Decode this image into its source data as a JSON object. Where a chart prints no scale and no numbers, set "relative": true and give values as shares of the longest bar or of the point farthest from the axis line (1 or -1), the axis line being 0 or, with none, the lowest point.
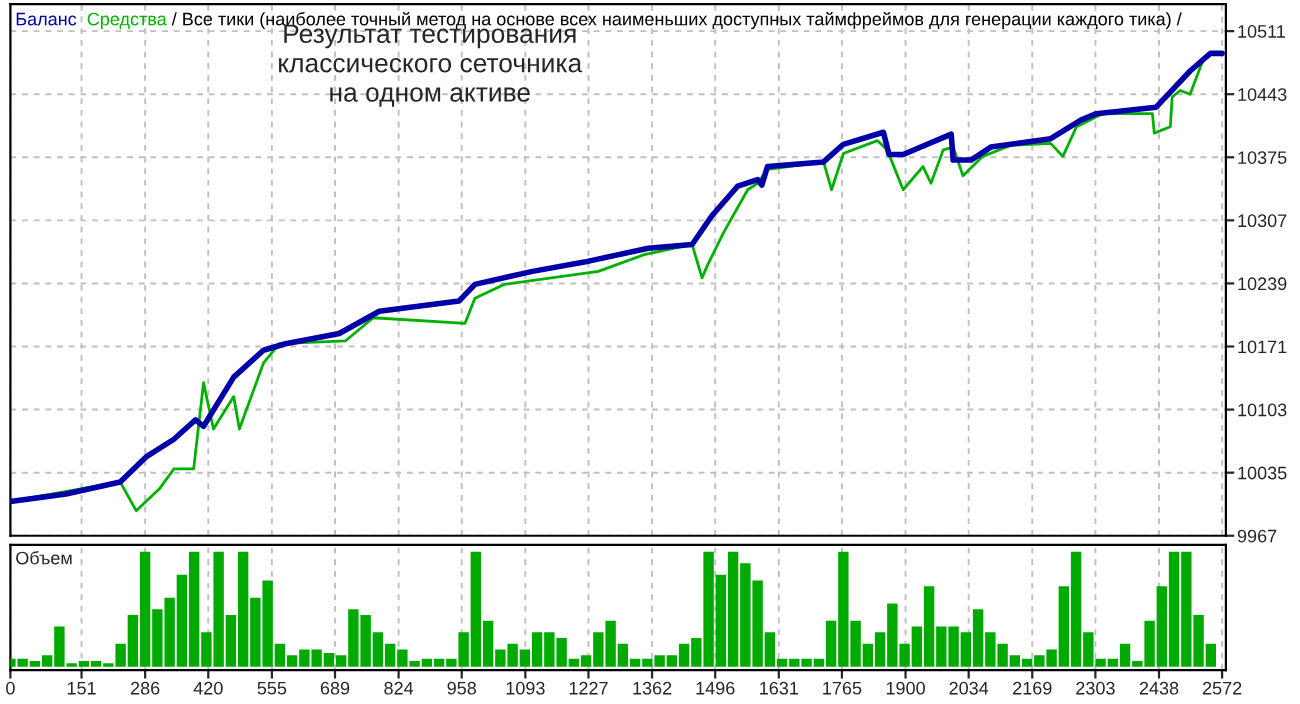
{
  "chart_data": [
    {
      "type": "line",
      "subtitle": "/ Все тики (наиболее точный метод на основе всех наименьших доступных таймфреймов для генерации каждого тика) /",
      "annotations": [
        "Результат тестирования\nклассического сеточника\nна одном активе"
      ],
      "series": [
        {
          "name": "Баланс",
          "color": "#0000a8",
          "x": [
            0,
            118,
            233,
            288,
            347,
            393,
            410,
            474,
            537,
            584,
            698,
            783,
            952,
            986,
            1108,
            1218,
            1354,
            1447,
            1489,
            1544,
            1586,
            1595,
            1607,
            1726,
            1768,
            1853,
            1865,
            1895,
            1997,
            2001,
            2039,
            2081,
            2208,
            2272,
            2305,
            2432,
            2504,
            2547,
            2572
          ],
          "values": [
            10004,
            10012,
            10025,
            10052,
            10071,
            10092,
            10085,
            10138,
            10167,
            10174,
            10185,
            10209,
            10220,
            10238,
            10252,
            10262,
            10277,
            10281,
            10312,
            10344,
            10351,
            10345,
            10365,
            10370,
            10389,
            10402,
            10378,
            10378,
            10400,
            10372,
            10372,
            10386,
            10395,
            10415,
            10422,
            10429,
            10468,
            10487,
            10487
          ]
        },
        {
          "name": "Средства",
          "color": "#00b000",
          "x": [
            0,
            118,
            233,
            267,
            317,
            347,
            389,
            410,
            431,
            474,
            486,
            537,
            571,
            711,
            770,
            965,
            986,
            1049,
            1248,
            1345,
            1447,
            1468,
            1480,
            1514,
            1565,
            1586,
            1607,
            1726,
            1743,
            1768,
            1840,
            1861,
            1895,
            1937,
            1954,
            1980,
            2001,
            2022,
            2064,
            2124,
            2208,
            2234,
            2263,
            2318,
            2424,
            2428,
            2462,
            2466,
            2483,
            2504,
            2530
          ],
          "values": [
            10004,
            null,
            10025,
            9994,
            10018,
            10039,
            10039,
            10132,
            10082,
            10117,
            10082,
            10153,
            10174,
            10177,
            10202,
            10196,
            10223,
            10238,
            10252,
            10270,
            10281,
            10245,
            10259,
            10294,
            10340,
            10347,
            10362,
            10370,
            10340,
            10379,
            10393,
            10383,
            10340,
            10365,
            10347,
            10383,
            10386,
            10355,
            10376,
            10388,
            10390,
            10376,
            10408,
            10422,
            10422,
            10401,
            10408,
            10440,
            10447,
            10443,
            10478
          ]
        }
      ],
      "xlim": [
        0,
        2580
      ],
      "xticks": [
        0,
        151,
        286,
        420,
        555,
        689,
        824,
        958,
        1093,
        1227,
        1362,
        1496,
        1631,
        1765,
        1900,
        2034,
        2169,
        2303,
        2438,
        2572
      ],
      "ylim": [
        9967,
        10540
      ],
      "yticks": [
        9967,
        10035,
        10103,
        10171,
        10239,
        10307,
        10375,
        10443,
        10511
      ],
      "grid": true,
      "legend": "top left",
      "tick_labels": "y",
      "line_style": "solid"
    },
    {
      "type": "bar",
      "title": "Объем",
      "relative": true,
      "color": "#00aa00",
      "x": [
        0,
        26,
        52,
        78,
        104,
        130,
        156,
        182,
        208,
        234,
        260,
        286,
        312,
        338,
        364,
        390,
        416,
        442,
        468,
        494,
        520,
        546,
        572,
        598,
        624,
        650,
        676,
        702,
        728,
        754,
        780,
        806,
        832,
        858,
        884,
        910,
        936,
        962,
        988,
        1014,
        1040,
        1066,
        1092,
        1118,
        1144,
        1170,
        1196,
        1222,
        1248,
        1274,
        1300,
        1326,
        1352,
        1378,
        1404,
        1430,
        1456,
        1482,
        1508,
        1534,
        1560,
        1586,
        1612,
        1638,
        1664,
        1690,
        1716,
        1742,
        1768,
        1794,
        1820,
        1846,
        1872,
        1898,
        1924,
        1950,
        1976,
        2002,
        2028,
        2054,
        2080,
        2106,
        2132,
        2158,
        2184,
        2210,
        2236,
        2262,
        2288,
        2314,
        2340,
        2366,
        2392,
        2418,
        2444,
        2470,
        2496,
        2522,
        2548
      ],
      "values": [
        0.07,
        0.07,
        0.05,
        0.1,
        0.35,
        0.03,
        0.05,
        0.05,
        0.03,
        0.2,
        0.45,
        1,
        0.5,
        0.6,
        0.8,
        1,
        0.3,
        1,
        0.45,
        1,
        0.6,
        0.75,
        0.2,
        0.1,
        0.15,
        0.15,
        0.12,
        0.1,
        0.5,
        0.45,
        0.3,
        0.2,
        0.15,
        0.05,
        0.07,
        0.07,
        0.07,
        0.3,
        1,
        0.4,
        0.15,
        0.2,
        0.15,
        0.3,
        0.3,
        0.25,
        0.07,
        0.1,
        0.3,
        0.4,
        0.2,
        0.07,
        0.07,
        0.1,
        0.1,
        0.2,
        0.25,
        1,
        0.8,
        1,
        0.9,
        0.75,
        0.3,
        0.07,
        0.07,
        0.07,
        0.07,
        0.4,
        1,
        0.4,
        0.2,
        0.3,
        0.55,
        0.2,
        0.35,
        0.7,
        0.35,
        0.35,
        0.3,
        0.5,
        0.3,
        0.2,
        0.1,
        0.07,
        0.1,
        0.15,
        0.7,
        1,
        0.3,
        0.07,
        0.07,
        0.2,
        0.05,
        0.4,
        0.7,
        1,
        1,
        0.45,
        0.2
      ],
      "xlim": [
        0,
        2580
      ],
      "xticks": [
        0,
        151,
        286,
        420,
        555,
        689,
        824,
        958,
        1093,
        1227,
        1362,
        1496,
        1631,
        1765,
        1900,
        2034,
        2169,
        2303,
        2438,
        2572
      ],
      "grid": "x",
      "tick_labels": "x"
    }
  ]
}
